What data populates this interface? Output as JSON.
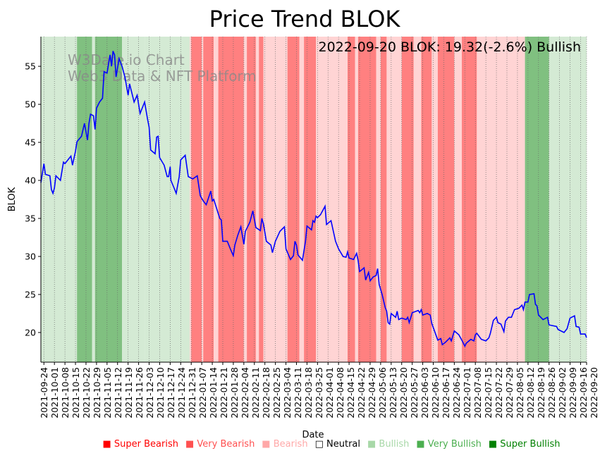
{
  "chart_data": {
    "type": "line",
    "title": "Price Trend BLOK",
    "xlabel": "Date",
    "ylabel": "BLOK",
    "annotation": "2022-09-20 BLOK: 19.32(-2.6%) Bullish",
    "watermark": [
      "W3Date.io Chart",
      "Web3 Data & NFT Platform"
    ],
    "x_origin_date": "2021-09-24",
    "x_unit": "days since 2021-09-24",
    "xlim": [
      -2,
      361
    ],
    "ylim": [
      16.1,
      58.9
    ],
    "yticks": [
      20,
      25,
      30,
      35,
      40,
      45,
      50,
      55
    ],
    "grid": "vertical dotted",
    "line_color": "#0000ff",
    "xtick_days": [
      0,
      7,
      14,
      21,
      28,
      35,
      42,
      49,
      56,
      63,
      70,
      77,
      84,
      91,
      98,
      105,
      112,
      119,
      126,
      133,
      140,
      147,
      154,
      161,
      168,
      175,
      182,
      189,
      196,
      203,
      210,
      217,
      224,
      231,
      238,
      245,
      252,
      259,
      266,
      273,
      280,
      287,
      294,
      301,
      308,
      315,
      322,
      329,
      336,
      343,
      350,
      357,
      361
    ],
    "xtick_labels": [
      "2021-09-24",
      "2021-10-01",
      "2021-10-08",
      "2021-10-15",
      "2021-10-22",
      "2021-10-29",
      "2021-11-05",
      "2021-11-12",
      "2021-11-19",
      "2021-11-26",
      "2021-12-03",
      "2021-12-10",
      "2021-12-17",
      "2021-12-24",
      "2021-12-31",
      "2022-01-07",
      "2022-01-14",
      "2022-01-21",
      "2022-01-28",
      "2022-02-04",
      "2022-02-11",
      "2022-02-18",
      "2022-02-25",
      "2022-03-04",
      "2022-03-11",
      "2022-03-18",
      "2022-03-25",
      "2022-04-01",
      "2022-04-08",
      "2022-04-15",
      "2022-04-22",
      "2022-04-29",
      "2022-05-06",
      "2022-05-13",
      "2022-05-20",
      "2022-05-27",
      "2022-06-03",
      "2022-06-10",
      "2022-06-17",
      "2022-06-24",
      "2022-07-01",
      "2022-07-08",
      "2022-07-15",
      "2022-07-22",
      "2022-07-29",
      "2022-08-05",
      "2022-08-12",
      "2022-08-19",
      "2022-08-26",
      "2022-09-02",
      "2022-09-09",
      "2022-09-16",
      "2022-09-20"
    ],
    "series": [
      {
        "name": "BLOK",
        "points": [
          [
            -2,
            39.7
          ],
          [
            0,
            42.2
          ],
          [
            1,
            40.8
          ],
          [
            4,
            40.6
          ],
          [
            5,
            38.8
          ],
          [
            6,
            38.3
          ],
          [
            7,
            39.0
          ],
          [
            8,
            40.6
          ],
          [
            11,
            40.0
          ],
          [
            13,
            42.4
          ],
          [
            14,
            42.2
          ],
          [
            18,
            43.2
          ],
          [
            19,
            42.0
          ],
          [
            21,
            43.8
          ],
          [
            22,
            45.1
          ],
          [
            25,
            45.8
          ],
          [
            27,
            47.5
          ],
          [
            29,
            45.3
          ],
          [
            30,
            47.5
          ],
          [
            31,
            48.7
          ],
          [
            33,
            48.5
          ],
          [
            34,
            46.7
          ],
          [
            35,
            49.5
          ],
          [
            37,
            50.3
          ],
          [
            39,
            50.8
          ],
          [
            40,
            54.3
          ],
          [
            42,
            54.1
          ],
          [
            44,
            56.5
          ],
          [
            45,
            55.0
          ],
          [
            46,
            57.0
          ],
          [
            47,
            56.5
          ],
          [
            48,
            53.6
          ],
          [
            50,
            56.0
          ],
          [
            52,
            55.0
          ],
          [
            54,
            53.5
          ],
          [
            56,
            51.2
          ],
          [
            57,
            52.7
          ],
          [
            60,
            50.3
          ],
          [
            62,
            51.2
          ],
          [
            64,
            48.8
          ],
          [
            67,
            50.3
          ],
          [
            69,
            48.0
          ],
          [
            70,
            47.0
          ],
          [
            71,
            44.0
          ],
          [
            74,
            43.5
          ],
          [
            75,
            45.7
          ],
          [
            76,
            45.8
          ],
          [
            77,
            43.0
          ],
          [
            80,
            42.0
          ],
          [
            82,
            40.5
          ],
          [
            83,
            40.5
          ],
          [
            84,
            41.8
          ],
          [
            84.5,
            40.0
          ],
          [
            87,
            38.8
          ],
          [
            88,
            38.3
          ],
          [
            90,
            40.5
          ],
          [
            91,
            42.7
          ],
          [
            94,
            43.3
          ],
          [
            96,
            40.5
          ],
          [
            99,
            40.2
          ],
          [
            102,
            40.6
          ],
          [
            104,
            38.0
          ],
          [
            106,
            37.3
          ],
          [
            108,
            36.8
          ],
          [
            110,
            38.0
          ],
          [
            111,
            38.6
          ],
          [
            112,
            37.3
          ],
          [
            113,
            37.5
          ],
          [
            117,
            35.0
          ],
          [
            118,
            34.8
          ],
          [
            119,
            32.0
          ],
          [
            122,
            32.0
          ],
          [
            124,
            31.0
          ],
          [
            126,
            30.1
          ],
          [
            127,
            31.5
          ],
          [
            129,
            32.8
          ],
          [
            131,
            33.9
          ],
          [
            133,
            31.6
          ],
          [
            134,
            33.3
          ],
          [
            137,
            34.5
          ],
          [
            139,
            36.0
          ],
          [
            141,
            33.8
          ],
          [
            144,
            33.4
          ],
          [
            145,
            35.0
          ],
          [
            146,
            34.3
          ],
          [
            148,
            32.0
          ],
          [
            151,
            31.5
          ],
          [
            152,
            30.5
          ],
          [
            154,
            32.0
          ],
          [
            157,
            33.3
          ],
          [
            159,
            33.7
          ],
          [
            160,
            33.9
          ],
          [
            161,
            31.0
          ],
          [
            164,
            29.6
          ],
          [
            166,
            30.1
          ],
          [
            167,
            32.0
          ],
          [
            168,
            31.5
          ],
          [
            169,
            30.2
          ],
          [
            172,
            29.5
          ],
          [
            174,
            32.0
          ],
          [
            175,
            34.0
          ],
          [
            178,
            33.5
          ],
          [
            179,
            34.7
          ],
          [
            180,
            34.5
          ],
          [
            181,
            35.3
          ],
          [
            182,
            35.1
          ],
          [
            184,
            35.5
          ],
          [
            187,
            36.6
          ],
          [
            188,
            34.2
          ],
          [
            191,
            34.7
          ],
          [
            194,
            32.0
          ],
          [
            196,
            31.0
          ],
          [
            199,
            30.0
          ],
          [
            201,
            29.9
          ],
          [
            202,
            30.6
          ],
          [
            203,
            29.8
          ],
          [
            206,
            29.6
          ],
          [
            208,
            30.4
          ],
          [
            209,
            29.5
          ],
          [
            210,
            28.0
          ],
          [
            213,
            28.5
          ],
          [
            214,
            26.9
          ],
          [
            216,
            27.9
          ],
          [
            217,
            26.8
          ],
          [
            219,
            27.3
          ],
          [
            221,
            27.5
          ],
          [
            222,
            28.4
          ],
          [
            223,
            26.3
          ],
          [
            225,
            25.0
          ],
          [
            227,
            23.3
          ],
          [
            228,
            22.8
          ],
          [
            229,
            21.3
          ],
          [
            230,
            21.1
          ],
          [
            231,
            22.5
          ],
          [
            234,
            22.0
          ],
          [
            235,
            22.8
          ],
          [
            236,
            21.7
          ],
          [
            238,
            21.9
          ],
          [
            241,
            21.7
          ],
          [
            242,
            22.0
          ],
          [
            243,
            21.3
          ],
          [
            245,
            22.6
          ],
          [
            249,
            22.9
          ],
          [
            250,
            22.6
          ],
          [
            251,
            23.0
          ],
          [
            252,
            22.3
          ],
          [
            255,
            22.5
          ],
          [
            257,
            22.3
          ],
          [
            258,
            21.2
          ],
          [
            262,
            19.0
          ],
          [
            264,
            19.2
          ],
          [
            265,
            18.4
          ],
          [
            267,
            18.7
          ],
          [
            270,
            19.3
          ],
          [
            271,
            18.9
          ],
          [
            273,
            20.2
          ],
          [
            276,
            19.7
          ],
          [
            278,
            19.0
          ],
          [
            280,
            18.2
          ],
          [
            281,
            18.6
          ],
          [
            284,
            19.1
          ],
          [
            286,
            18.9
          ],
          [
            287,
            19.7
          ],
          [
            288,
            19.9
          ],
          [
            291,
            19.1
          ],
          [
            294,
            18.9
          ],
          [
            296,
            19.3
          ],
          [
            297,
            19.9
          ],
          [
            299,
            21.6
          ],
          [
            301,
            22.0
          ],
          [
            302,
            21.3
          ],
          [
            304,
            21.1
          ],
          [
            306,
            20.1
          ],
          [
            307,
            21.5
          ],
          [
            309,
            22.0
          ],
          [
            311,
            22.0
          ],
          [
            313,
            23.0
          ],
          [
            316,
            23.2
          ],
          [
            318,
            23.6
          ],
          [
            319,
            23.0
          ],
          [
            320,
            24.0
          ],
          [
            322,
            24.0
          ],
          [
            323,
            25.0
          ],
          [
            326,
            25.1
          ],
          [
            327,
            23.7
          ],
          [
            328,
            23.5
          ],
          [
            329,
            22.3
          ],
          [
            332,
            21.7
          ],
          [
            334,
            21.9
          ],
          [
            335,
            22.0
          ],
          [
            336,
            21.0
          ],
          [
            341,
            20.8
          ],
          [
            342,
            20.4
          ],
          [
            346,
            20.0
          ],
          [
            348,
            20.5
          ],
          [
            350,
            21.9
          ],
          [
            353,
            22.2
          ],
          [
            354,
            20.8
          ],
          [
            356,
            20.7
          ],
          [
            357,
            19.8
          ],
          [
            360,
            19.8
          ],
          [
            361,
            19.32
          ]
        ]
      }
    ],
    "bands": [
      [
        -2,
        22,
        "Bullish"
      ],
      [
        22,
        32,
        "Very Bullish"
      ],
      [
        32,
        34,
        "Bullish"
      ],
      [
        34,
        52,
        "Very Bullish"
      ],
      [
        52,
        67,
        "Bullish"
      ],
      [
        67,
        97,
        "Bullish"
      ],
      [
        97,
        98,
        "Bearish"
      ],
      [
        98,
        105,
        "Very Bearish"
      ],
      [
        105,
        106,
        "Bearish"
      ],
      [
        106,
        113,
        "Very Bearish"
      ],
      [
        113,
        116,
        "Bearish"
      ],
      [
        116,
        133,
        "Very Bearish"
      ],
      [
        133,
        135,
        "Bearish"
      ],
      [
        135,
        141,
        "Very Bearish"
      ],
      [
        141,
        143,
        "Bearish"
      ],
      [
        143,
        146,
        "Very Bearish"
      ],
      [
        146,
        162,
        "Bearish"
      ],
      [
        162,
        170,
        "Very Bearish"
      ],
      [
        170,
        173,
        "Bearish"
      ],
      [
        173,
        181,
        "Very Bearish"
      ],
      [
        181,
        202,
        "Bearish"
      ],
      [
        202,
        207,
        "Very Bearish"
      ],
      [
        207,
        209,
        "Bearish"
      ],
      [
        209,
        221,
        "Very Bearish"
      ],
      [
        221,
        224,
        "Bearish"
      ],
      [
        224,
        228,
        "Very Bearish"
      ],
      [
        228,
        238,
        "Bearish"
      ],
      [
        238,
        246,
        "Very Bearish"
      ],
      [
        246,
        251,
        "Bearish"
      ],
      [
        251,
        258,
        "Very Bearish"
      ],
      [
        258,
        262,
        "Bearish"
      ],
      [
        262,
        273,
        "Very Bearish"
      ],
      [
        273,
        278,
        "Bearish"
      ],
      [
        278,
        288,
        "Very Bearish"
      ],
      [
        288,
        320,
        "Bearish"
      ],
      [
        320,
        336,
        "Very Bullish"
      ],
      [
        336,
        361,
        "Bullish"
      ]
    ],
    "band_colors": {
      "Bullish": "#d4ead4",
      "Very Bullish": "#80c080",
      "Bearish": "#ffd4d4",
      "Very Bearish": "#ff8080"
    },
    "legend": {
      "placement": "bottom",
      "items": [
        {
          "label": "Super Bearish",
          "color": "#ff0000",
          "marker": "■"
        },
        {
          "label": "Very Bearish",
          "color": "#ff5050",
          "marker": "■"
        },
        {
          "label": "Bearish",
          "color": "#ffa8a8",
          "marker": "■"
        },
        {
          "label": "Neutral",
          "color": "#000000",
          "marker": "□"
        },
        {
          "label": "Bullish",
          "color": "#a8d8a8",
          "marker": "■"
        },
        {
          "label": "Very Bullish",
          "color": "#4caf50",
          "marker": "■"
        },
        {
          "label": "Super Bullish",
          "color": "#008000",
          "marker": "■"
        }
      ]
    }
  }
}
